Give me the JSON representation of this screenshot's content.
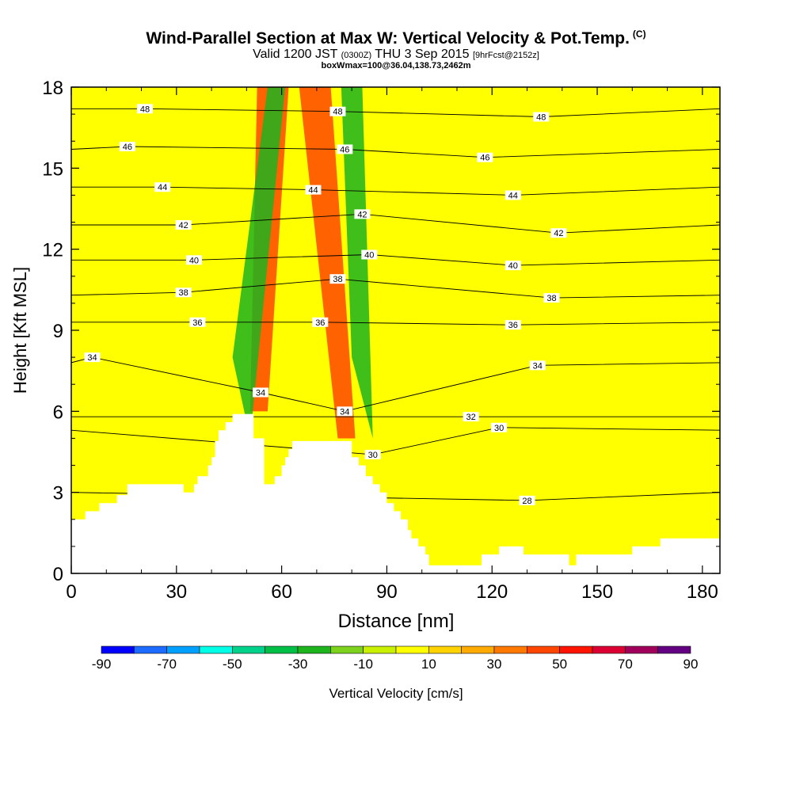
{
  "title": {
    "main": "Wind-Parallel Section at Max W: Vertical Velocity & Pot.Temp.",
    "tag": "(C)",
    "valid_prefix": "Valid 1200 JST",
    "valid_z": "(0300Z)",
    "valid_date": "THU 3 Sep 2015",
    "forecast": "[9hrFcst@2152z]",
    "box": "boxWmax=100@36.04,138.73,2462m"
  },
  "chart_data": {
    "type": "heatmap",
    "xlabel": "Distance [nm]",
    "ylabel": "Height [Kft MSL]",
    "xlim": [
      0,
      185
    ],
    "ylim": [
      0,
      18
    ],
    "x_ticks": [
      0,
      30,
      60,
      90,
      120,
      150,
      180
    ],
    "y_ticks": [
      0,
      3,
      6,
      9,
      12,
      15,
      18
    ],
    "colorbar": {
      "label": "Vertical Velocity [cm/s]",
      "min": -90,
      "max": 90,
      "step": 10,
      "tick_labels": [
        "-90",
        "-70",
        "-50",
        "-30",
        "-10",
        "10",
        "30",
        "50",
        "70",
        "90"
      ],
      "colors": [
        "#0000ff",
        "#1e6bff",
        "#00a0ff",
        "#00ffe6",
        "#00d28c",
        "#00be46",
        "#1eb41e",
        "#7dd21e",
        "#c8f000",
        "#ffff00",
        "#ffd200",
        "#ffaa00",
        "#ff7800",
        "#ff4600",
        "#ff1400",
        "#dc0032",
        "#a0005a",
        "#640082"
      ]
    },
    "terrain_kft": [
      [
        0,
        2
      ],
      [
        4,
        2
      ],
      [
        4,
        2.3
      ],
      [
        8,
        2.3
      ],
      [
        8,
        2.6
      ],
      [
        13,
        2.6
      ],
      [
        13,
        2.9
      ],
      [
        16,
        2.9
      ],
      [
        16,
        3.3
      ],
      [
        32,
        3.3
      ],
      [
        32,
        3
      ],
      [
        35,
        3
      ],
      [
        35,
        3.3
      ],
      [
        36,
        3.3
      ],
      [
        36,
        3.6
      ],
      [
        39,
        3.6
      ],
      [
        39,
        4
      ],
      [
        40,
        4
      ],
      [
        40,
        4.3
      ],
      [
        41,
        4.3
      ],
      [
        41,
        4.9
      ],
      [
        42,
        4.9
      ],
      [
        42,
        5.3
      ],
      [
        44,
        5.3
      ],
      [
        44,
        5.6
      ],
      [
        46,
        5.6
      ],
      [
        46,
        5.9
      ],
      [
        52,
        5.9
      ],
      [
        52,
        5
      ],
      [
        55,
        5
      ],
      [
        55,
        3.3
      ],
      [
        58,
        3.3
      ],
      [
        58,
        3.6
      ],
      [
        60,
        3.6
      ],
      [
        60,
        4
      ],
      [
        61,
        4
      ],
      [
        61,
        4.3
      ],
      [
        62,
        4.3
      ],
      [
        62,
        4.6
      ],
      [
        63,
        4.6
      ],
      [
        63,
        4.9
      ],
      [
        80,
        4.9
      ],
      [
        80,
        4.3
      ],
      [
        82,
        4.3
      ],
      [
        82,
        4
      ],
      [
        84,
        4
      ],
      [
        84,
        3.6
      ],
      [
        86,
        3.6
      ],
      [
        86,
        3.3
      ],
      [
        88,
        3.3
      ],
      [
        88,
        3
      ],
      [
        90,
        3
      ],
      [
        90,
        2.6
      ],
      [
        92,
        2.6
      ],
      [
        92,
        2.3
      ],
      [
        94,
        2.3
      ],
      [
        94,
        2
      ],
      [
        96,
        2
      ],
      [
        96,
        1.6
      ],
      [
        97,
        1.6
      ],
      [
        97,
        1.3
      ],
      [
        99,
        1.3
      ],
      [
        99,
        1
      ],
      [
        101,
        1
      ],
      [
        101,
        0.7
      ],
      [
        102,
        0.7
      ],
      [
        102,
        0.3
      ],
      [
        110,
        0.3
      ],
      [
        117,
        0.3
      ],
      [
        117,
        0.7
      ],
      [
        122,
        0.7
      ],
      [
        122,
        1
      ],
      [
        129,
        1
      ],
      [
        129,
        0.7
      ],
      [
        142,
        0.7
      ],
      [
        142,
        0.3
      ],
      [
        144,
        0.3
      ],
      [
        144,
        0.7
      ],
      [
        160,
        0.7
      ],
      [
        160,
        1
      ],
      [
        168,
        1
      ],
      [
        168,
        1.3
      ],
      [
        185,
        1.3
      ]
    ],
    "updraft_bands": [
      {
        "value": 40,
        "bottom": [
          [
            51,
            6
          ],
          [
            56,
            6
          ]
        ],
        "top": [
          [
            53,
            18
          ],
          [
            62,
            18
          ]
        ]
      },
      {
        "value": 40,
        "bottom": [
          [
            76,
            5
          ],
          [
            81,
            5
          ]
        ],
        "top": [
          [
            65,
            18
          ],
          [
            74,
            18
          ]
        ]
      },
      {
        "value": -30,
        "bottom": [
          [
            46,
            8
          ],
          [
            51,
            5
          ]
        ],
        "top": [
          [
            56,
            18
          ],
          [
            61,
            18
          ]
        ]
      },
      {
        "value": -30,
        "bottom": [
          [
            80,
            8
          ],
          [
            86,
            5
          ]
        ],
        "top": [
          [
            77,
            18
          ],
          [
            83,
            18
          ]
        ]
      }
    ],
    "theta_contours": [
      {
        "value": 48,
        "y_base": 17.2,
        "label": "48",
        "label_points": [
          [
            21,
            17.2
          ],
          [
            76,
            17.1
          ],
          [
            134,
            16.9
          ]
        ]
      },
      {
        "value": 46,
        "y_base": 15.7,
        "label": "46",
        "label_points": [
          [
            16,
            15.8
          ],
          [
            78,
            15.7
          ],
          [
            118,
            15.4
          ]
        ]
      },
      {
        "value": 44,
        "y_base": 14.3,
        "label": "44",
        "label_points": [
          [
            26,
            14.3
          ],
          [
            69,
            14.2
          ],
          [
            126,
            14
          ]
        ]
      },
      {
        "value": 42,
        "y_base": 12.9,
        "label": "42",
        "label_points": [
          [
            32,
            12.9
          ],
          [
            83,
            13.3
          ],
          [
            139,
            12.6
          ]
        ]
      },
      {
        "value": 40,
        "y_base": 11.6,
        "label": "40",
        "label_points": [
          [
            35,
            11.6
          ],
          [
            85,
            11.8
          ],
          [
            126,
            11.4
          ]
        ]
      },
      {
        "value": 38,
        "y_base": 10.3,
        "label": "38",
        "label_points": [
          [
            32,
            10.4
          ],
          [
            76,
            10.9
          ],
          [
            137,
            10.2
          ]
        ]
      },
      {
        "value": 36,
        "y_base": 9.3,
        "label": "36",
        "label_points": [
          [
            36,
            9.3
          ],
          [
            71,
            9.3
          ],
          [
            126,
            9.2
          ]
        ]
      },
      {
        "value": 34,
        "y_base": 7.8,
        "label": "34",
        "label_points": [
          [
            6,
            8
          ],
          [
            54,
            6.7
          ],
          [
            78,
            6
          ],
          [
            133,
            7.7
          ]
        ]
      },
      {
        "value": 32,
        "y_base": 5.8,
        "label": "32",
        "label_points": [
          [
            114,
            5.8
          ]
        ]
      },
      {
        "value": 30,
        "y_base": 5.3,
        "label": "30",
        "label_points": [
          [
            122,
            5.4
          ],
          [
            86,
            4.4
          ]
        ]
      },
      {
        "value": 28,
        "y_base": 3,
        "label": "28",
        "label_points": [
          [
            130,
            2.7
          ]
        ]
      }
    ]
  }
}
